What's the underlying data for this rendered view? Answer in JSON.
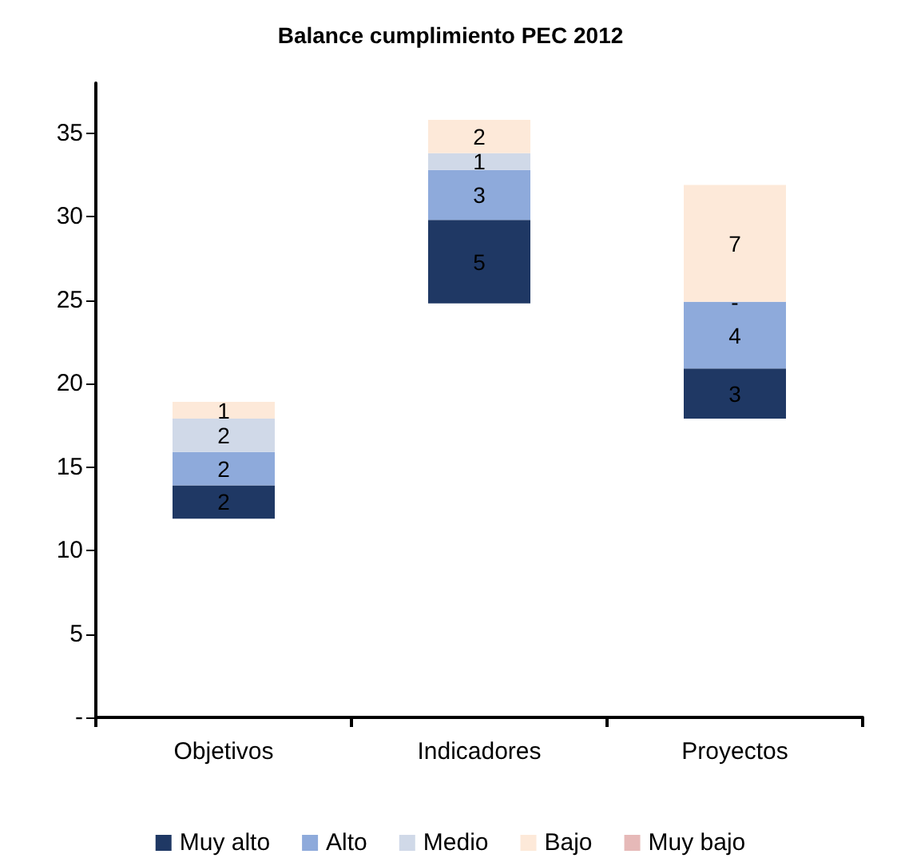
{
  "chart_data": {
    "type": "bar",
    "title": "Balance cumplimiento PEC 2012",
    "categories": [
      "Objetivos",
      "Indicadores",
      "Proyectos"
    ],
    "series": [
      {
        "name": "Muy alto",
        "color": "#1f3864",
        "base": [
          11.9,
          24.8,
          17.9
        ],
        "values": [
          2,
          5,
          3
        ],
        "value_labels": [
          "2",
          "5",
          "3"
        ]
      },
      {
        "name": "Alto",
        "color": "#8eaadb",
        "base": [
          13.9,
          29.8,
          20.9
        ],
        "values": [
          2,
          3,
          4
        ],
        "value_labels": [
          "2",
          "3",
          "4"
        ]
      },
      {
        "name": "Medio",
        "color": "#d0d9e8",
        "base": [
          15.9,
          32.8,
          null
        ],
        "values": [
          2,
          1,
          null
        ],
        "value_labels": [
          "2",
          "1",
          null
        ]
      },
      {
        "name": "Bajo",
        "color": "#fde9d9",
        "base": [
          17.9,
          33.8,
          24.9
        ],
        "values": [
          1,
          2,
          7
        ],
        "value_labels": [
          "1",
          "2",
          "7"
        ]
      },
      {
        "name": "Muy bajo",
        "color": "#e6b9b8",
        "values": [
          null,
          null,
          null
        ]
      }
    ],
    "ylim": [
      0,
      38
    ],
    "yticks": [
      {
        "value": 0,
        "label": "-"
      },
      5,
      10,
      15,
      20,
      25,
      30,
      35
    ],
    "annotations": [
      {
        "text": "-",
        "x": "Proyectos",
        "y": 24.9
      }
    ],
    "legend": "bottom"
  }
}
